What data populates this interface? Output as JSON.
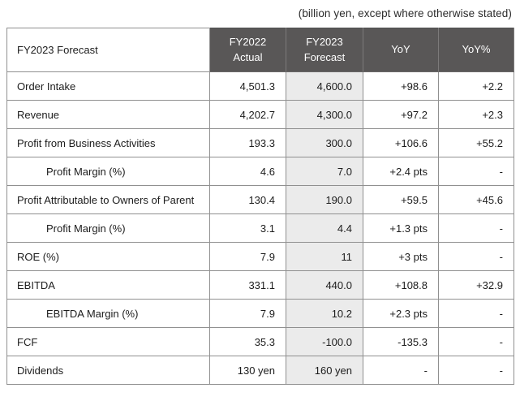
{
  "note": "(billion yen, except where otherwise stated)",
  "colors": {
    "header_bg": "#595757",
    "header_text": "#ffffff",
    "highlight_column_bg": "#ebebeb",
    "inner_border": "#909090",
    "outer_border": "#4f4f4f",
    "body_text": "#1c1c1c"
  },
  "table": {
    "header": {
      "col_label": "FY2023 Forecast",
      "col_fy2022": "FY2022\nActual",
      "col_fy2023": "FY2023\nForecast",
      "col_yoy": "YoY",
      "col_yoy_pct": "YoY%"
    },
    "rows": [
      {
        "label": "Order Intake",
        "fy2022": "4,501.3",
        "fy2023": "4,600.0",
        "yoy": "+98.6",
        "yoy_pct": "+2.2"
      },
      {
        "label": "Revenue",
        "fy2022": "4,202.7",
        "fy2023": "4,300.0",
        "yoy": "+97.2",
        "yoy_pct": "+2.3"
      },
      {
        "label": "Profit from Business Activities",
        "fy2022": "193.3",
        "fy2023": "300.0",
        "yoy": "+106.6",
        "yoy_pct": "+55.2"
      },
      {
        "label": "Profit Margin (%)",
        "fy2022": "4.6",
        "fy2023": "7.0",
        "yoy": "+2.4 pts",
        "yoy_pct": "-"
      },
      {
        "label": "Profit Attributable to Owners of Parent",
        "fy2022": "130.4",
        "fy2023": "190.0",
        "yoy": "+59.5",
        "yoy_pct": "+45.6"
      },
      {
        "label": "Profit Margin (%)",
        "fy2022": "3.1",
        "fy2023": "4.4",
        "yoy": "+1.3 pts",
        "yoy_pct": "-"
      },
      {
        "label": "ROE (%)",
        "fy2022": "7.9",
        "fy2023": "11",
        "yoy": "+3 pts",
        "yoy_pct": "-"
      },
      {
        "label": "EBITDA",
        "fy2022": "331.1",
        "fy2023": "440.0",
        "yoy": "+108.8",
        "yoy_pct": "+32.9"
      },
      {
        "label": "EBITDA Margin (%)",
        "fy2022": "7.9",
        "fy2023": "10.2",
        "yoy": "+2.3 pts",
        "yoy_pct": "-"
      },
      {
        "label": "FCF",
        "fy2022": "35.3",
        "fy2023": "-100.0",
        "yoy": "-135.3",
        "yoy_pct": "-"
      },
      {
        "label": "Dividends",
        "fy2022": "130 yen",
        "fy2023": "160 yen",
        "yoy": "-",
        "yoy_pct": "-"
      }
    ]
  }
}
